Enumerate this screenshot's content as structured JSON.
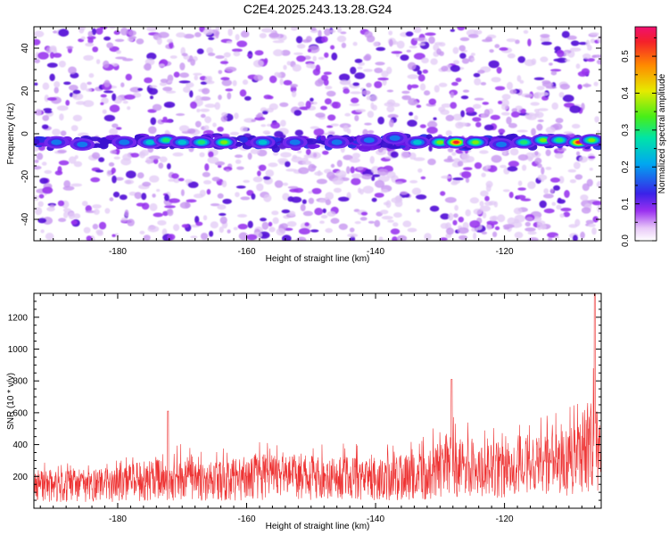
{
  "title": "C2E4.2025.243.13.28.G24",
  "chart_data": [
    {
      "type": "heatmap",
      "xlabel": "Height of straight line (km)",
      "ylabel": "Frequency (Hz)",
      "xlim": [
        -193,
        -105
      ],
      "ylim": [
        -50,
        50
      ],
      "xticks": [
        -180,
        -160,
        -140,
        -120
      ],
      "yticks": [
        -40,
        -20,
        0,
        20,
        40
      ],
      "colorbar": {
        "label": "Normalized spectral amplitude",
        "range": [
          0.0,
          0.58
        ],
        "ticks": [
          0.0,
          0.1,
          0.2,
          0.3,
          0.4,
          0.5
        ]
      },
      "band": {
        "frequency_hz": -4,
        "description": "strong band near -4 Hz"
      },
      "hotspots": [
        {
          "x": -189.5,
          "y": -4,
          "v": 0.22
        },
        {
          "x": -185.5,
          "y": -5,
          "v": 0.2
        },
        {
          "x": -179.0,
          "y": -4,
          "v": 0.22
        },
        {
          "x": -175.0,
          "y": -4,
          "v": 0.24
        },
        {
          "x": -172.5,
          "y": -3,
          "v": 0.3
        },
        {
          "x": -170.0,
          "y": -4,
          "v": 0.26
        },
        {
          "x": -167.0,
          "y": -4,
          "v": 0.3
        },
        {
          "x": -163.5,
          "y": -4,
          "v": 0.38
        },
        {
          "x": -157.5,
          "y": -4,
          "v": 0.28
        },
        {
          "x": -152.5,
          "y": -4,
          "v": 0.22
        },
        {
          "x": -146.0,
          "y": -4,
          "v": 0.22
        },
        {
          "x": -141.0,
          "y": -3,
          "v": 0.2
        },
        {
          "x": -137.0,
          "y": -2,
          "v": 0.2
        },
        {
          "x": -133.5,
          "y": -4,
          "v": 0.26
        },
        {
          "x": -130.0,
          "y": -4,
          "v": 0.36
        },
        {
          "x": -127.5,
          "y": -4,
          "v": 0.55
        },
        {
          "x": -124.5,
          "y": -4,
          "v": 0.36
        },
        {
          "x": -120.5,
          "y": -5,
          "v": 0.22
        },
        {
          "x": -117.0,
          "y": -4,
          "v": 0.32
        },
        {
          "x": -114.0,
          "y": -3,
          "v": 0.38
        },
        {
          "x": -111.5,
          "y": -3,
          "v": 0.34
        },
        {
          "x": -108.5,
          "y": -4,
          "v": 0.55
        },
        {
          "x": -106.5,
          "y": -3,
          "v": 0.36
        }
      ]
    },
    {
      "type": "line",
      "xlabel": "Height of straight line (km)",
      "ylabel": "SNR (10 * v/v)",
      "xlim": [
        -193,
        -105
      ],
      "ylim": [
        0,
        1350
      ],
      "xticks": [
        -180,
        -160,
        -140,
        -120
      ],
      "yticks": [
        200,
        400,
        600,
        800,
        1000,
        1200
      ],
      "color": "#ee3333",
      "envelope": [
        {
          "x": -193,
          "base": 150,
          "peak": 300
        },
        {
          "x": -180,
          "base": 160,
          "peak": 330
        },
        {
          "x": -172,
          "base": 190,
          "peak": 420
        },
        {
          "x": -165,
          "base": 180,
          "peak": 380
        },
        {
          "x": -158,
          "base": 200,
          "peak": 430
        },
        {
          "x": -150,
          "base": 200,
          "peak": 420
        },
        {
          "x": -140,
          "base": 190,
          "peak": 400
        },
        {
          "x": -133,
          "base": 210,
          "peak": 440
        },
        {
          "x": -128,
          "base": 270,
          "peak": 600
        },
        {
          "x": -124,
          "base": 230,
          "peak": 520
        },
        {
          "x": -118,
          "base": 250,
          "peak": 540
        },
        {
          "x": -112,
          "base": 280,
          "peak": 600
        },
        {
          "x": -108,
          "base": 320,
          "peak": 680
        },
        {
          "x": -106,
          "base": 500,
          "peak": 1250
        },
        {
          "x": -105,
          "base": 300,
          "peak": 500
        }
      ],
      "peaks": [
        {
          "x": -172.2,
          "y": 610
        },
        {
          "x": -128.2,
          "y": 810
        },
        {
          "x": -106.0,
          "y": 1350
        }
      ]
    }
  ]
}
